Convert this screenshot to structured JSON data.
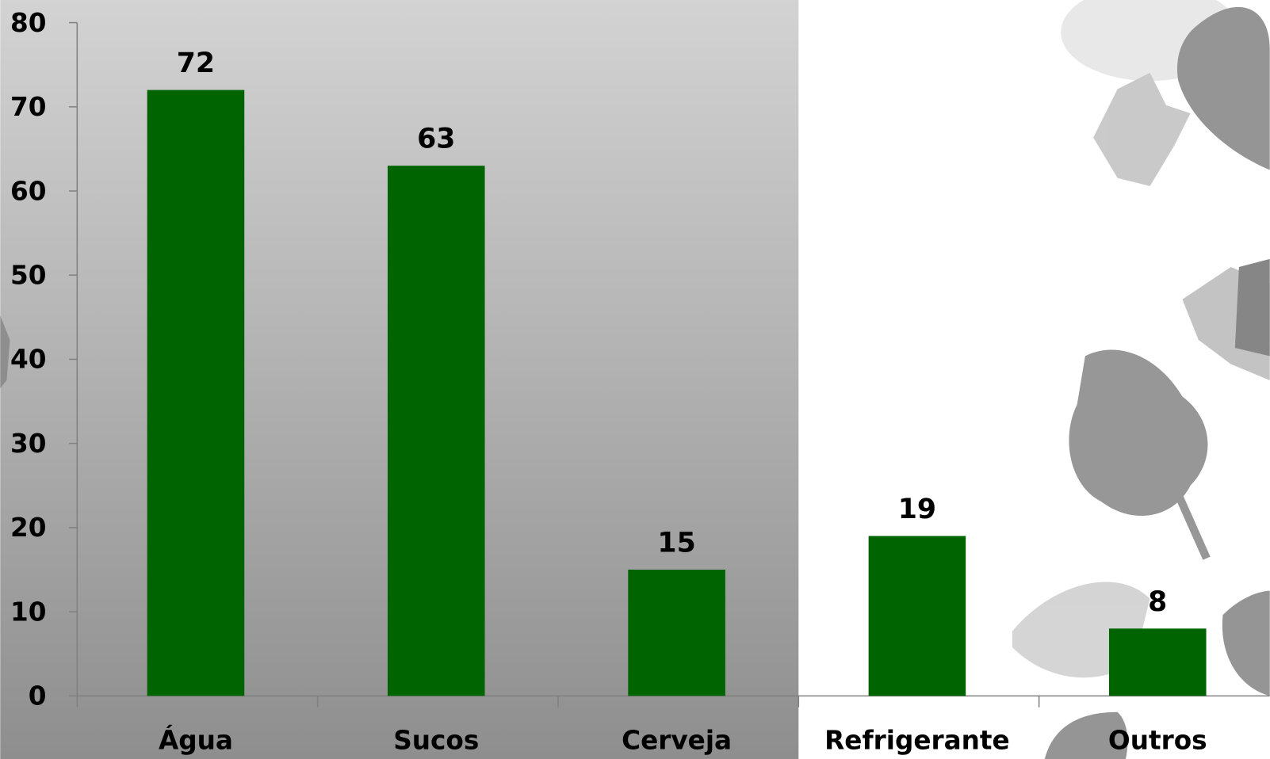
{
  "chart_data": {
    "type": "bar",
    "categories": [
      "Água",
      "Sucos",
      "Cerveja",
      "Refrigerante",
      "Outros"
    ],
    "values": [
      72,
      63,
      15,
      19,
      8
    ],
    "color": "#006400",
    "ylim": [
      0,
      80
    ],
    "yticks": [
      0,
      10,
      20,
      30,
      40,
      50,
      60,
      70,
      80
    ]
  }
}
